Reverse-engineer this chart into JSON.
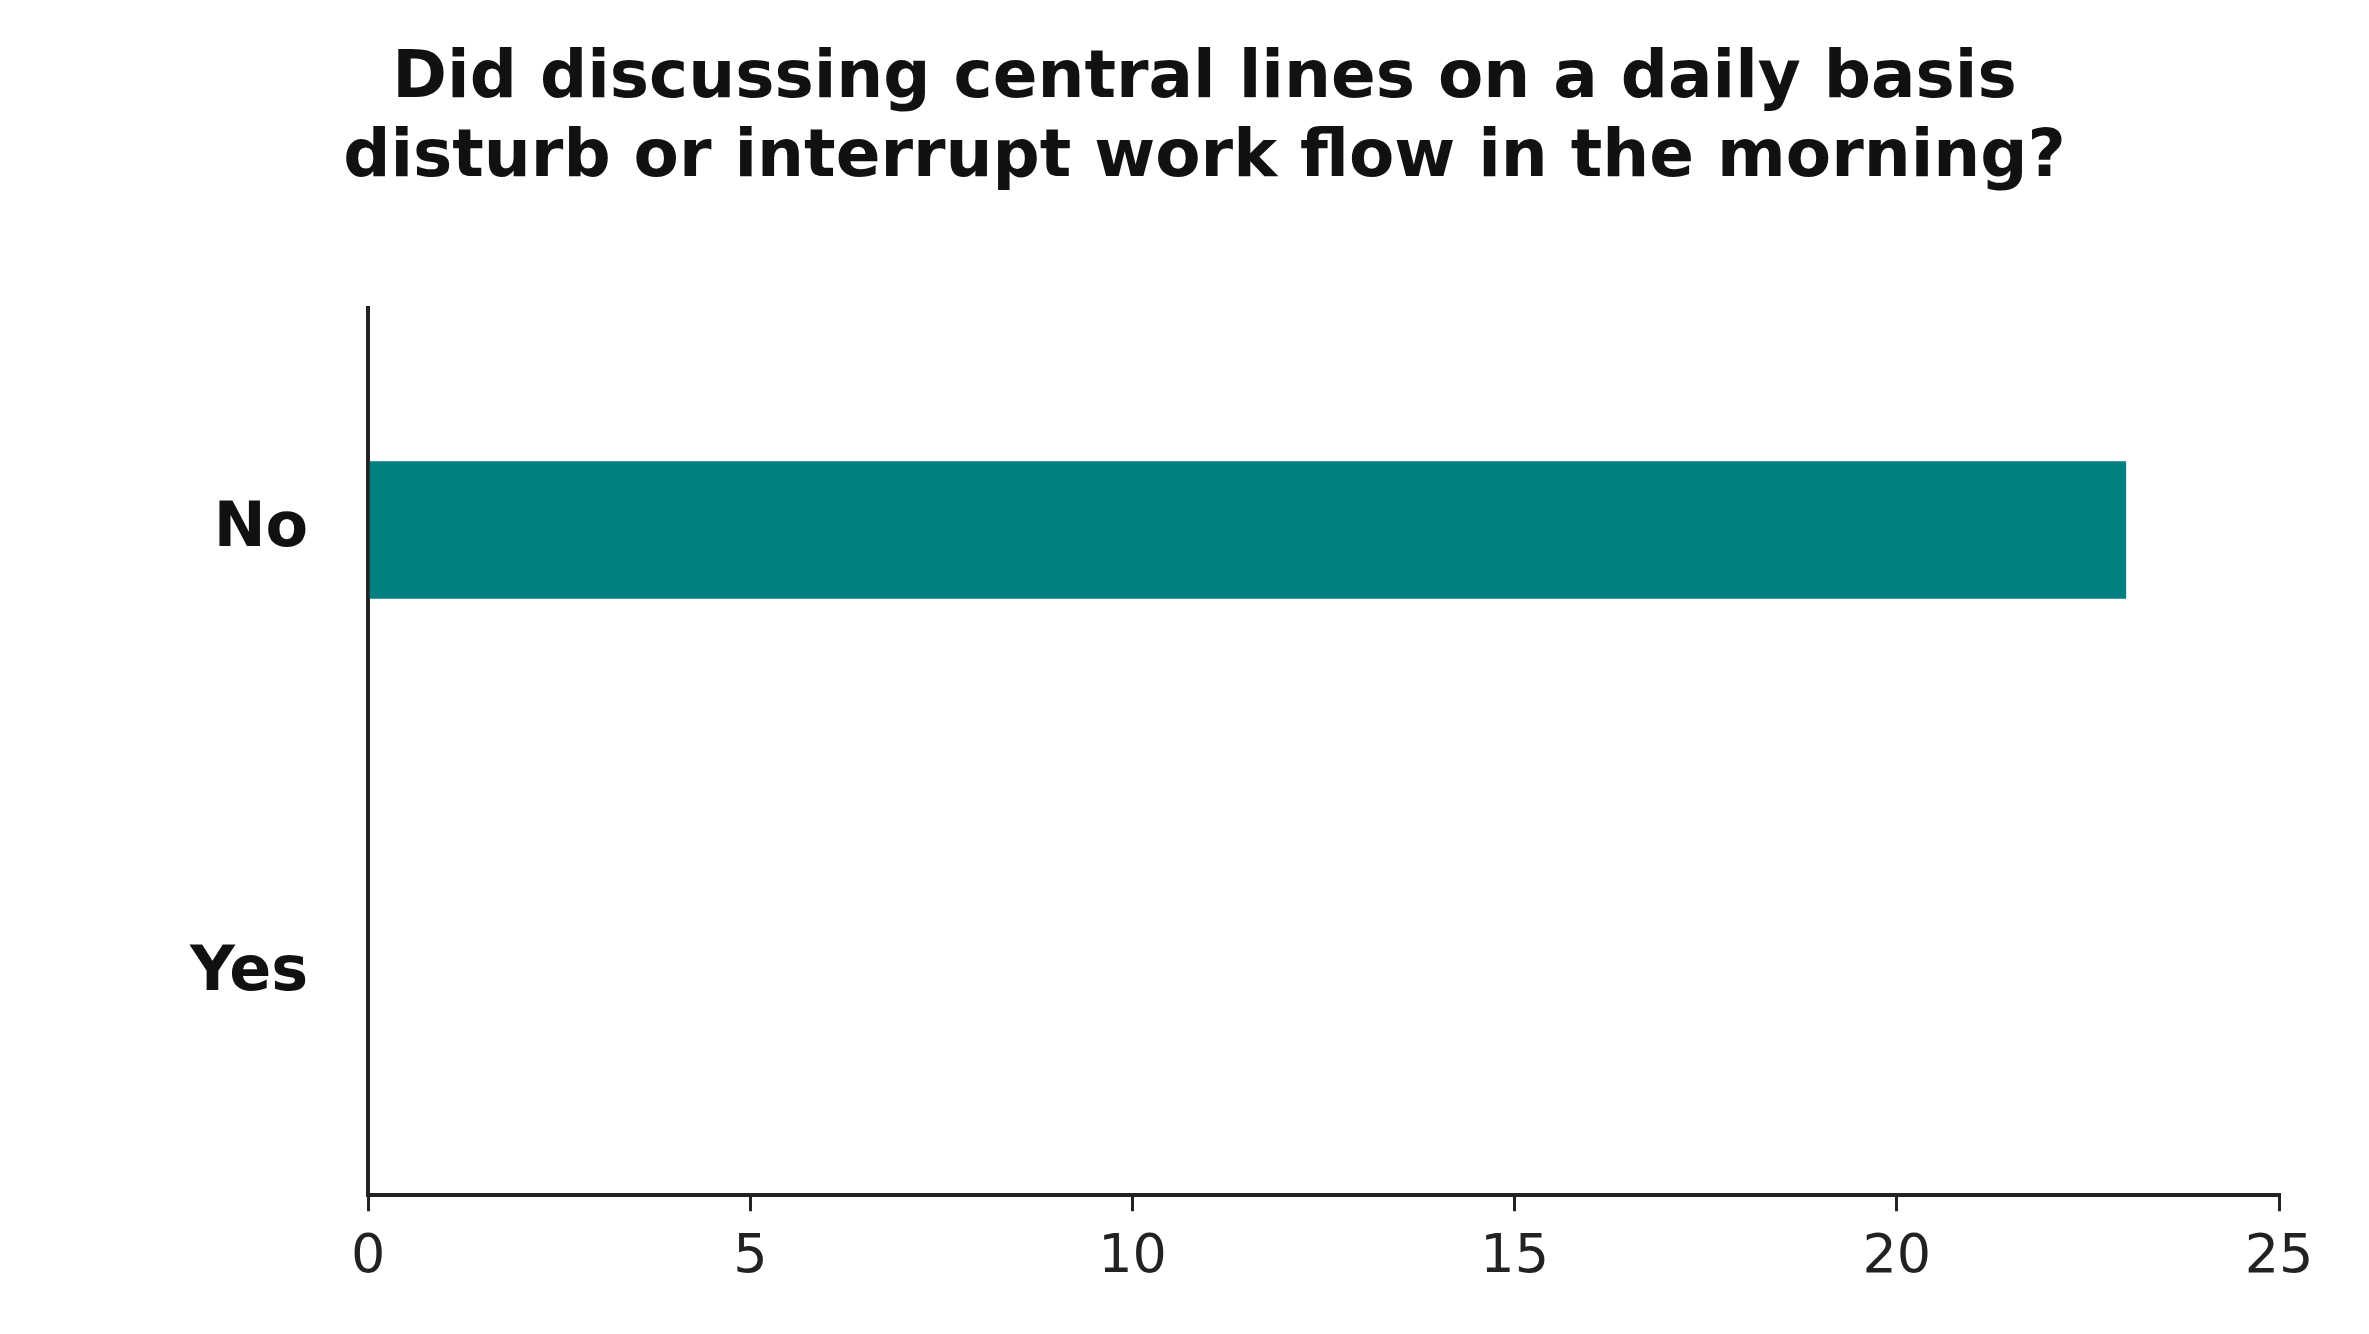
{
  "chart_data": {
    "type": "bar",
    "orientation": "horizontal",
    "title": "Did discussing central lines on a daily basis disturb or interrupt work flow in the morning?",
    "categories": [
      "No",
      "Yes"
    ],
    "values": [
      23,
      0
    ],
    "color": "#008080",
    "xlim": [
      0,
      25
    ],
    "xticks": [
      0,
      5,
      10,
      15,
      20,
      25
    ],
    "grid": false,
    "legend": false
  }
}
